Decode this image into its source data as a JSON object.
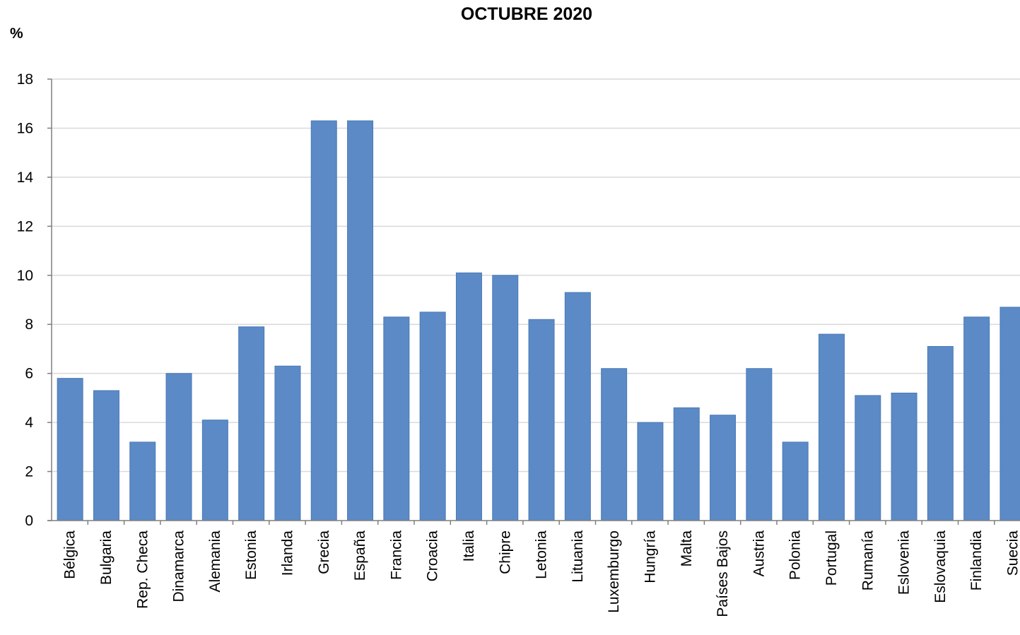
{
  "chart_data": {
    "type": "bar",
    "title": "OCTUBRE 2020",
    "ylabel": "%",
    "xlabel": "",
    "ylim": [
      0,
      18
    ],
    "yticks": [
      0,
      2,
      4,
      6,
      8,
      10,
      12,
      14,
      16,
      18
    ],
    "grid": true,
    "bar_color": "#5B8AC6",
    "categories": [
      "Bélgica",
      "Bulgaria",
      "Rep. Checa",
      "Dinamarca",
      "Alemania",
      "Estonia",
      "Irlanda",
      "Grecia",
      "España",
      "Francia",
      "Croacia",
      "Italia",
      "Chipre",
      "Letonia",
      "Lituania",
      "Luxemburgo",
      "Hungría",
      "Malta",
      "Países Bajos",
      "Austria",
      "Polonia",
      "Portugal",
      "Rumanía",
      "Eslovenia",
      "Eslovaquia",
      "Finlandia",
      "Suecia"
    ],
    "values": [
      5.8,
      5.3,
      3.2,
      6.0,
      4.1,
      7.9,
      6.3,
      16.3,
      16.3,
      8.3,
      8.5,
      10.1,
      10.0,
      8.2,
      9.3,
      6.2,
      4.0,
      4.6,
      4.3,
      6.2,
      3.2,
      7.6,
      5.1,
      5.2,
      7.1,
      8.3,
      8.7
    ]
  }
}
